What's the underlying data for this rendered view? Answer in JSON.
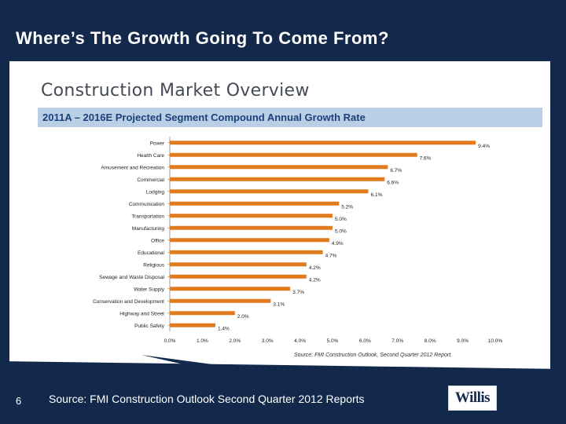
{
  "slide": {
    "title": "Where’s The Growth Going To Come From?",
    "number": "6",
    "footer_source": "Source:  FMI Construction Outlook Second Quarter 2012 Reports",
    "logo": "Willis"
  },
  "colors": {
    "navy": "#13294b",
    "bar": "#e07b1f",
    "band": "#b9cfe6"
  },
  "chart_data": {
    "type": "bar",
    "orientation": "horizontal",
    "title": "Construction Market Overview",
    "subtitle": "2011A – 2016E Projected Segment Compound Annual Growth Rate",
    "source_note": "Source: FMI Construction Outlook, Second Quarter 2012 Report.",
    "categories": [
      "Power",
      "Health Care",
      "Amusement and Recreation",
      "Commercial",
      "Lodging",
      "Communication",
      "Transportation",
      "Manufacturing",
      "Office",
      "Educational",
      "Religious",
      "Sewage and Waste Disposal",
      "Water Supply",
      "Conservation and Development",
      "Highway and Street",
      "Public Safety"
    ],
    "values": [
      9.4,
      7.6,
      6.7,
      6.6,
      6.1,
      5.2,
      5.0,
      5.0,
      4.9,
      4.7,
      4.2,
      4.2,
      3.7,
      3.1,
      2.0,
      1.4
    ],
    "data_labels": [
      "9.4%",
      "7.6%",
      "6.7%",
      "6.6%",
      "6.1%",
      "5.2%",
      "5.0%",
      "5.0%",
      "4.9%",
      "4.7%",
      "4.2%",
      "4.2%",
      "3.7%",
      "3.1%",
      "2.0%",
      "1.4%"
    ],
    "xlim": [
      0,
      10
    ],
    "x_ticks": [
      "0.0%",
      "1.0%",
      "2.0%",
      "3.0%",
      "4.0%",
      "5.0%",
      "6.0%",
      "7.0%",
      "8.0%",
      "9.0%",
      "10.0%"
    ],
    "grid": false,
    "legend": "none"
  }
}
